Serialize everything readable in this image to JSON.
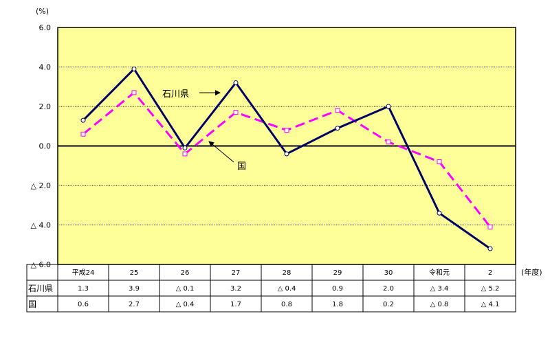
{
  "chart_data": {
    "type": "line",
    "unit_label": "(%)",
    "x_unit_label": "(年度)",
    "categories": [
      "平成24",
      "25",
      "26",
      "27",
      "28",
      "29",
      "30",
      "令和元",
      "2"
    ],
    "ylim": [
      -6.0,
      6.0
    ],
    "y_ticks": [
      {
        "value": 6.0,
        "label": "6.0"
      },
      {
        "value": 4.0,
        "label": "4.0"
      },
      {
        "value": 2.0,
        "label": "2.0"
      },
      {
        "value": 0.0,
        "label": "0.0"
      },
      {
        "value": -2.0,
        "label": "△ 2.0"
      },
      {
        "value": -4.0,
        "label": "△ 4.0"
      },
      {
        "value": -6.0,
        "label": "△ 6.0"
      }
    ],
    "grid": true,
    "series": [
      {
        "name": "石川県",
        "color": "#000066",
        "style": "solid",
        "marker": "circle",
        "values": [
          1.3,
          3.9,
          -0.1,
          3.2,
          -0.4,
          0.9,
          2.0,
          -3.4,
          -5.2
        ],
        "table_labels": [
          "1.3",
          "3.9",
          "△ 0.1",
          "3.2",
          "△ 0.4",
          "0.9",
          "2.0",
          "△ 3.4",
          "△ 5.2"
        ]
      },
      {
        "name": "国",
        "color": "#ff00ff",
        "style": "dashed",
        "marker": "square",
        "values": [
          0.6,
          2.7,
          -0.4,
          1.7,
          0.8,
          1.8,
          0.2,
          -0.8,
          -4.1
        ],
        "table_labels": [
          "0.6",
          "2.7",
          "△ 0.4",
          "1.7",
          "0.8",
          "1.8",
          "0.2",
          "△ 0.8",
          "△ 4.1"
        ]
      }
    ],
    "annotations": [
      {
        "text": "石川県",
        "series": "石川県"
      },
      {
        "text": "国",
        "series": "国"
      }
    ],
    "plot_background": "#ffff99"
  }
}
